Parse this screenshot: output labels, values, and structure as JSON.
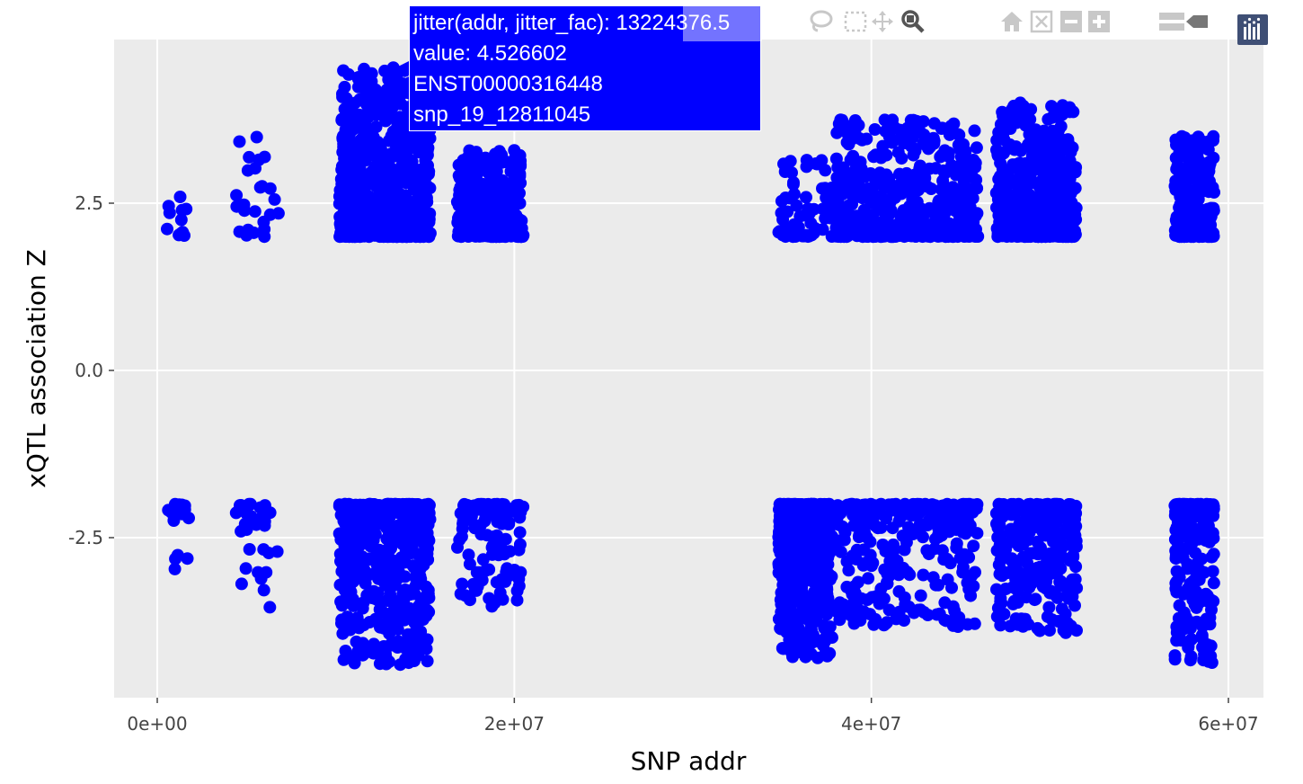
{
  "chart_data": {
    "type": "scatter",
    "title": "",
    "xlabel": "SNP addr",
    "ylabel": "xQTL association Z",
    "xlim": [
      -3000000,
      62000000
    ],
    "ylim": [
      -4.7,
      4.9
    ],
    "x_ticks": [
      0,
      20000000,
      40000000,
      60000000
    ],
    "x_tick_labels": [
      "0e+00",
      "2e+07",
      "4e+07",
      "6e+07"
    ],
    "y_ticks": [
      2.5,
      0.0,
      -2.5
    ],
    "y_tick_labels": [
      "2.5",
      "0.0",
      "-2.5"
    ],
    "grid": true,
    "point_color": "#0000ff",
    "plot_background": "#ebebeb",
    "clusters": [
      {
        "x_range": [
          400000,
          1800000
        ],
        "z_pos_max": 2.6,
        "z_neg_min": -3.1,
        "n_pos": 12,
        "n_neg": 18
      },
      {
        "x_range": [
          4400000,
          6800000
        ],
        "z_pos_max": 3.65,
        "z_neg_min": -3.55,
        "n_pos": 25,
        "n_neg": 30
      },
      {
        "x_range": [
          10200000,
          15300000
        ],
        "z_pos_max": 4.53,
        "z_neg_min": -4.4,
        "n_pos": 700,
        "n_neg": 500
      },
      {
        "x_range": [
          16800000,
          20500000
        ],
        "z_pos_max": 3.3,
        "z_neg_min": -3.55,
        "n_pos": 300,
        "n_neg": 120
      },
      {
        "x_range": [
          34800000,
          37800000
        ],
        "z_pos_max": 3.15,
        "z_neg_min": -4.3,
        "n_pos": 60,
        "n_neg": 600
      },
      {
        "x_range": [
          38000000,
          46000000
        ],
        "z_pos_max": 3.75,
        "z_neg_min": -3.85,
        "n_pos": 500,
        "n_neg": 300
      },
      {
        "x_range": [
          47000000,
          51500000
        ],
        "z_pos_max": 4.0,
        "z_neg_min": -3.95,
        "n_pos": 500,
        "n_neg": 300
      },
      {
        "x_range": [
          57000000,
          59200000
        ],
        "z_pos_max": 3.5,
        "z_neg_min": -4.4,
        "n_pos": 220,
        "n_neg": 220
      }
    ]
  },
  "hover": {
    "line1": "jitter(addr, jitter_fac): 13224376.5",
    "line2": "value:  4.526602",
    "line3": "ENST00000316448",
    "line4": "snp_19_12811045",
    "background_color": "#0000ff"
  },
  "modebar": {
    "buttons": [
      "camera-icon",
      "lasso-icon",
      "box-select-icon",
      "pan-icon",
      "zoom-icon",
      "home-icon",
      "autoscale-icon",
      "zoom-out-icon",
      "zoom-in-icon",
      "compare-hover-icon",
      "closest-hover-icon",
      "plotly-logo-icon"
    ]
  }
}
